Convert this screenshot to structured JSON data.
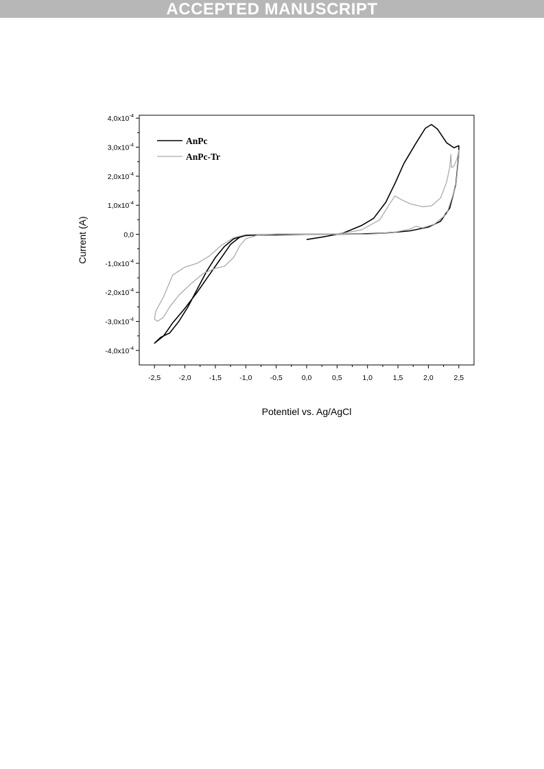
{
  "page": {
    "banner": "ACCEPTED MANUSCRIPT"
  },
  "chart_data": {
    "type": "line",
    "xlabel": "Potentiel vs. Ag/AgCl",
    "ylabel": "Current (A)",
    "xlim": [
      -2.75,
      2.75
    ],
    "ylim": [
      -0.00045,
      0.00041
    ],
    "xticks": [
      -2.5,
      -2.0,
      -1.5,
      -1.0,
      -0.5,
      0.0,
      0.5,
      1.0,
      1.5,
      2.0,
      2.5
    ],
    "xtick_labels": [
      "-2,5",
      "-2,0",
      "-1,5",
      "-1,0",
      "-0,5",
      "0,0",
      "0,5",
      "1,0",
      "1,5",
      "2,0",
      "2,5"
    ],
    "yticks": [
      -0.0004,
      -0.0003,
      -0.0002,
      -0.0001,
      0.0,
      0.0001,
      0.0002,
      0.0003,
      0.0004
    ],
    "ytick_labels": [
      {
        "mant": "-4,0x10",
        "exp": "-4"
      },
      {
        "mant": "-3,0x10",
        "exp": "-4"
      },
      {
        "mant": "-2,0x10",
        "exp": "-4"
      },
      {
        "mant": "-1,0x10",
        "exp": "-4"
      },
      {
        "mant": "0,0",
        "exp": ""
      },
      {
        "mant": "1,0x10",
        "exp": "-4"
      },
      {
        "mant": "2,0x10",
        "exp": "-4"
      },
      {
        "mant": "3,0x10",
        "exp": "-4"
      },
      {
        "mant": "4,0x10",
        "exp": "-4"
      }
    ],
    "grid": false,
    "legend_position": "top-left",
    "series": [
      {
        "name": "AnPc",
        "color": "#000000",
        "points": [
          [
            0.0,
            -1.8e-05
          ],
          [
            0.3,
            -8e-06
          ],
          [
            0.6,
            4e-06
          ],
          [
            0.9,
            3e-05
          ],
          [
            1.1,
            5.5e-05
          ],
          [
            1.3,
            0.00011
          ],
          [
            1.45,
            0.000175
          ],
          [
            1.6,
            0.000245
          ],
          [
            1.8,
            0.000315
          ],
          [
            1.95,
            0.000365
          ],
          [
            2.05,
            0.000378
          ],
          [
            2.15,
            0.000362
          ],
          [
            2.3,
            0.000315
          ],
          [
            2.42,
            0.000298
          ],
          [
            2.5,
            0.000305
          ],
          [
            2.5,
            0.000275
          ],
          [
            2.45,
            0.00017
          ],
          [
            2.35,
            9e-05
          ],
          [
            2.2,
            4.5e-05
          ],
          [
            2.0,
            2.5e-05
          ],
          [
            1.7,
            1.2e-05
          ],
          [
            1.3,
            4e-06
          ],
          [
            0.9,
            1e-06
          ],
          [
            0.5,
            0.0
          ],
          [
            0.0,
            0.0
          ],
          [
            -0.5,
            -2e-06
          ],
          [
            -0.8,
            -3e-06
          ],
          [
            -1.0,
            -4e-06
          ],
          [
            -1.1,
            -1e-05
          ],
          [
            -1.25,
            -3.5e-05
          ],
          [
            -1.4,
            -8e-05
          ],
          [
            -1.6,
            -0.00014
          ],
          [
            -1.8,
            -0.0002
          ],
          [
            -2.0,
            -0.000255
          ],
          [
            -2.2,
            -0.000305
          ],
          [
            -2.35,
            -0.00035
          ],
          [
            -2.5,
            -0.000375
          ],
          [
            -2.4,
            -0.000355
          ],
          [
            -2.25,
            -0.00034
          ],
          [
            -2.1,
            -0.0003
          ],
          [
            -1.95,
            -0.00025
          ],
          [
            -1.8,
            -0.00019
          ],
          [
            -1.65,
            -0.00013
          ],
          [
            -1.5,
            -8e-05
          ],
          [
            -1.35,
            -4.2e-05
          ],
          [
            -1.2,
            -1.6e-05
          ],
          [
            -1.05,
            -5e-06
          ],
          [
            -0.8,
            -2e-06
          ],
          [
            -0.5,
            0.0
          ],
          [
            -0.3,
            0.0
          ],
          [
            0.0,
            0.0
          ]
        ]
      },
      {
        "name": "AnPc-Tr",
        "color": "#aaaaaa",
        "points": [
          [
            0.0,
            0.0
          ],
          [
            0.5,
            0.0
          ],
          [
            0.9,
            1.5e-05
          ],
          [
            1.2,
            5e-05
          ],
          [
            1.35,
            0.0001
          ],
          [
            1.45,
            0.000132
          ],
          [
            1.55,
            0.00012
          ],
          [
            1.7,
            0.000105
          ],
          [
            1.9,
            9.5e-05
          ],
          [
            2.05,
            9.8e-05
          ],
          [
            2.2,
            0.000125
          ],
          [
            2.3,
            0.00018
          ],
          [
            2.35,
            0.00023
          ],
          [
            2.37,
            0.000275
          ],
          [
            2.38,
            0.00023
          ],
          [
            2.42,
            0.000235
          ],
          [
            2.47,
            0.00026
          ],
          [
            2.5,
            0.00029
          ],
          [
            2.5,
            0.000265
          ],
          [
            2.45,
            0.000165
          ],
          [
            2.3,
            7e-05
          ],
          [
            2.1,
            3.5e-05
          ],
          [
            1.9,
            2.2e-05
          ],
          [
            1.8,
            2.8e-05
          ],
          [
            1.7,
            1.8e-05
          ],
          [
            1.4,
            5e-06
          ],
          [
            1.0,
            0.0
          ],
          [
            0.5,
            0.0
          ],
          [
            0.0,
            0.0
          ],
          [
            -0.5,
            0.0
          ],
          [
            -0.8,
            -3e-06
          ],
          [
            -1.0,
            -1.5e-05
          ],
          [
            -1.1,
            -4e-05
          ],
          [
            -1.2,
            -8e-05
          ],
          [
            -1.35,
            -0.00011
          ],
          [
            -1.5,
            -0.000117
          ],
          [
            -1.7,
            -0.000135
          ],
          [
            -1.9,
            -0.00017
          ],
          [
            -2.1,
            -0.00021
          ],
          [
            -2.25,
            -0.00025
          ],
          [
            -2.35,
            -0.000285
          ],
          [
            -2.45,
            -0.0003
          ],
          [
            -2.5,
            -0.000292
          ],
          [
            -2.48,
            -0.000265
          ],
          [
            -2.35,
            -0.000215
          ],
          [
            -2.2,
            -0.00014
          ],
          [
            -2.0,
            -0.000113
          ],
          [
            -1.8,
            -0.0001
          ],
          [
            -1.6,
            -7.5e-05
          ],
          [
            -1.4,
            -3.8e-05
          ],
          [
            -1.2,
            -1.2e-05
          ],
          [
            -1.0,
            -1e-06
          ],
          [
            -0.7,
            0.0
          ],
          [
            -0.3,
            0.0
          ],
          [
            0.0,
            0.0
          ]
        ]
      }
    ]
  }
}
